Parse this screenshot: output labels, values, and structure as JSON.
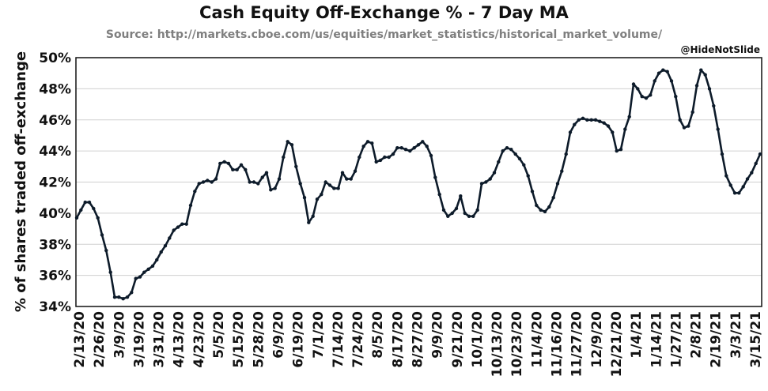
{
  "chart_data": {
    "type": "line",
    "title": "Cash Equity Off-Exchange % - 7 Day MA",
    "subtitle": "Source: http://markets.cboe.com/us/equities/market_statistics/historical_market_volume/",
    "watermark": "@HideNotSlide",
    "ylabel": "% of shares traded off-exchange",
    "xlabel": "",
    "ylim": [
      34,
      50
    ],
    "ytick_values": [
      34,
      36,
      38,
      40,
      42,
      44,
      46,
      48,
      50
    ],
    "ytick_labels": [
      "34%",
      "36%",
      "38%",
      "40%",
      "42%",
      "44%",
      "46%",
      "48%",
      "50%"
    ],
    "xticks": [
      "2/13/20",
      "2/26/20",
      "3/9/20",
      "3/19/20",
      "3/31/20",
      "4/13/20",
      "4/23/20",
      "5/5/20",
      "5/15/20",
      "5/28/20",
      "6/9/20",
      "6/19/20",
      "7/1/20",
      "7/14/20",
      "7/24/20",
      "8/5/20",
      "8/17/20",
      "8/27/20",
      "9/9/20",
      "9/21/20",
      "10/1/20",
      "10/13/20",
      "10/23/20",
      "11/4/20",
      "11/16/20",
      "11/27/20",
      "12/9/20",
      "12/21/20",
      "1/4/21",
      "1/14/21",
      "1/27/21",
      "2/8/21",
      "2/19/21",
      "3/3/21",
      "3/15/21"
    ],
    "grid": "horizontal",
    "legend": "none",
    "line_color": "#0d1b2a",
    "series": [
      {
        "values": [
          39.7,
          40.2,
          40.7,
          40.7,
          40.3,
          39.7,
          38.6,
          37.6,
          36.2,
          34.6,
          34.6,
          34.5,
          34.6,
          34.9,
          35.8,
          35.9,
          36.2,
          36.4,
          36.6,
          37.0,
          37.5,
          37.9,
          38.4,
          38.9,
          39.1,
          39.3,
          39.3,
          40.5,
          41.4,
          41.9,
          42.0,
          42.1,
          42.0,
          42.2,
          43.2,
          43.3,
          43.2,
          42.8,
          42.8,
          43.1,
          42.8,
          42.0,
          42.0,
          41.9,
          42.3,
          42.6,
          41.5,
          41.6,
          42.2,
          43.6,
          44.6,
          44.4,
          43.0,
          41.9,
          41.0,
          39.4,
          39.8,
          40.9,
          41.2,
          42.0,
          41.8,
          41.6,
          41.6,
          42.6,
          42.2,
          42.2,
          42.7,
          43.6,
          44.3,
          44.6,
          44.5,
          43.3,
          43.4,
          43.6,
          43.6,
          43.8,
          44.2,
          44.2,
          44.1,
          44.0,
          44.2,
          44.4,
          44.6,
          44.3,
          43.7,
          42.3,
          41.2,
          40.2,
          39.8,
          40.0,
          40.3,
          41.1,
          40.0,
          39.8,
          39.8,
          40.2,
          41.9,
          42.0,
          42.2,
          42.6,
          43.3,
          44.0,
          44.2,
          44.1,
          43.8,
          43.5,
          43.1,
          42.4,
          41.4,
          40.5,
          40.2,
          40.1,
          40.4,
          41.0,
          41.9,
          42.7,
          43.8,
          45.2,
          45.7,
          46.0,
          46.1,
          46.0,
          46.0,
          46.0,
          45.9,
          45.8,
          45.6,
          45.2,
          44.0,
          44.1,
          45.4,
          46.2,
          48.3,
          48.0,
          47.5,
          47.4,
          47.6,
          48.5,
          49.0,
          49.2,
          49.1,
          48.5,
          47.5,
          46.0,
          45.5,
          45.6,
          46.5,
          48.2,
          49.2,
          48.9,
          48.0,
          46.9,
          45.4,
          43.8,
          42.4,
          41.8,
          41.3,
          41.3,
          41.7,
          42.2,
          42.6,
          43.2,
          43.8
        ]
      }
    ]
  }
}
